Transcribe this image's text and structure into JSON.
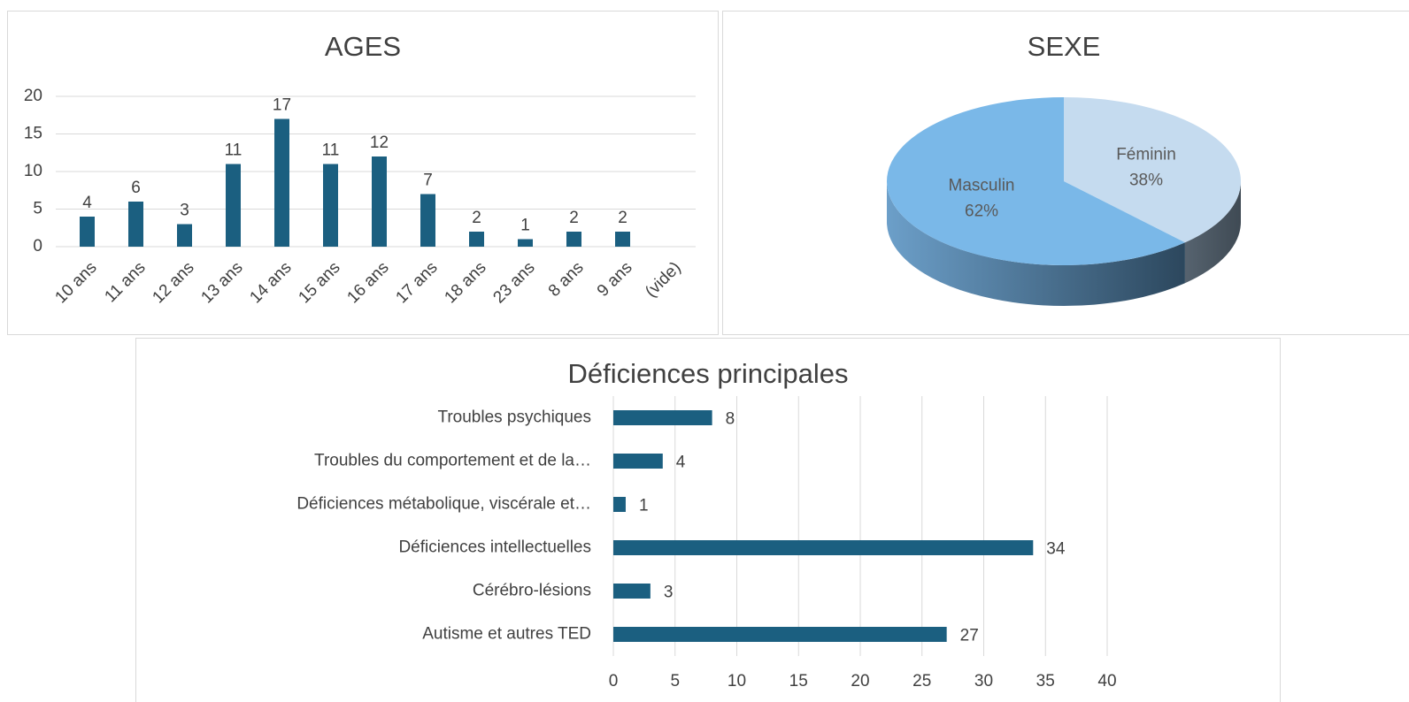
{
  "chart_data": [
    {
      "type": "bar",
      "title": "AGES",
      "categories": [
        "10 ans",
        "11 ans",
        "12 ans",
        "13 ans",
        "14 ans",
        "15 ans",
        "16 ans",
        "17 ans",
        "18 ans",
        "23 ans",
        "8 ans",
        "9 ans",
        "(vide)"
      ],
      "values": [
        4,
        6,
        3,
        11,
        17,
        11,
        12,
        7,
        2,
        1,
        2,
        2,
        null
      ],
      "color": "#1b5f80",
      "ylim": [
        0,
        20
      ],
      "yticks": [
        0,
        5,
        10,
        15,
        20
      ],
      "grid": true
    },
    {
      "type": "pie",
      "title": "SEXE",
      "categories": [
        "Féminin",
        "Masculin"
      ],
      "values": [
        38,
        62
      ],
      "value_labels": [
        "38%",
        "62%"
      ],
      "colors": [
        "#c5dbef",
        "#7ab8e8"
      ]
    },
    {
      "type": "hbar",
      "title": "Déficiences principales",
      "categories": [
        "Troubles psychiques",
        "Troubles du comportement et de la…",
        "Déficiences métabolique, viscérale et…",
        "Déficiences intellectuelles",
        "Cérébro-lésions",
        "Autisme et autres TED"
      ],
      "values": [
        8,
        4,
        1,
        34,
        3,
        27
      ],
      "color": "#1b5f80",
      "xlim": [
        0,
        40
      ],
      "xticks": [
        0,
        5,
        10,
        15,
        20,
        25,
        30,
        35,
        40
      ],
      "grid": true
    }
  ]
}
